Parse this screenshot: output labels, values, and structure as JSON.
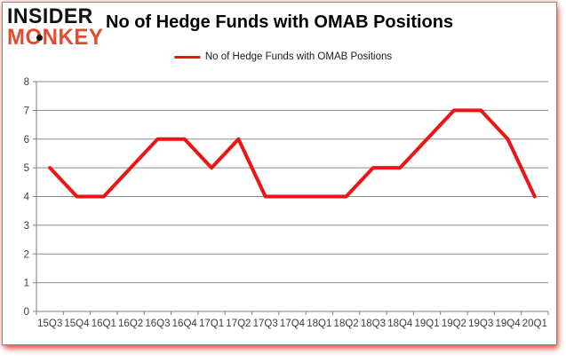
{
  "logo": {
    "line1": "INSIDER",
    "line2": "MONKEY"
  },
  "header": {
    "title": "No of Hedge Funds with OMAB Positions"
  },
  "colors": {
    "series": "#ee1414",
    "logo_black": "#111111",
    "logo_red": "#e14b33",
    "grid": "#8c8c8c",
    "axis": "#7f7f7f",
    "tick_label": "#3d3d3d",
    "frame_border": "#8f8f8f"
  },
  "chart_data": {
    "type": "line",
    "title": "No of Hedge Funds with OMAB Positions",
    "categories": [
      "15Q3",
      "15Q4",
      "16Q1",
      "16Q2",
      "16Q3",
      "16Q4",
      "17Q1",
      "17Q2",
      "17Q3",
      "17Q4",
      "18Q1",
      "18Q2",
      "18Q3",
      "18Q4",
      "19Q1",
      "19Q2",
      "19Q3",
      "19Q4",
      "20Q1"
    ],
    "series": [
      {
        "name": "No of Hedge Funds with OMAB Positions",
        "values": [
          5,
          4,
          4,
          5,
          6,
          6,
          5,
          6,
          4,
          4,
          4,
          4,
          5,
          5,
          6,
          7,
          7,
          6,
          4
        ]
      }
    ],
    "xlabel": "",
    "ylabel": "",
    "ylim": [
      0,
      8
    ],
    "ytick_step": 1,
    "grid": true,
    "legend_position": "top-center"
  }
}
